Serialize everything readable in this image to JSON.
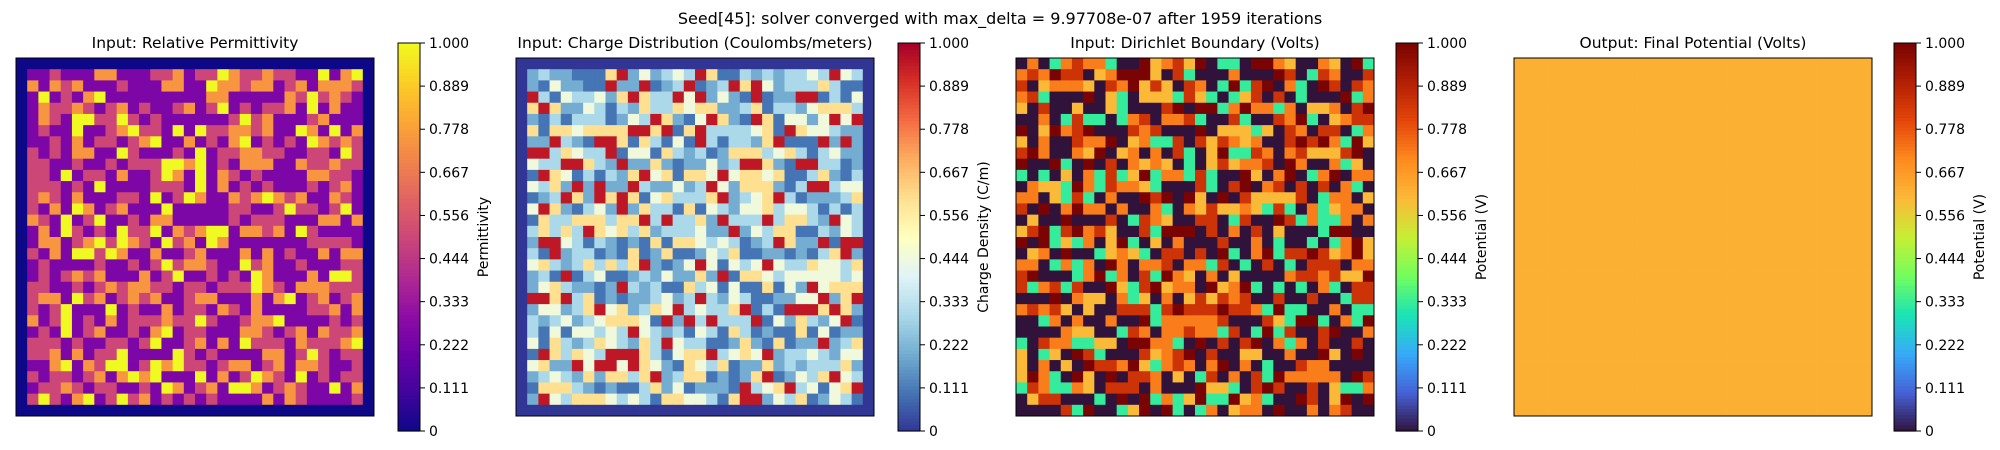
{
  "figure": {
    "suptitle": "Seed[45]: solver converged with max_delta = 9.97708e-07 after 1959 iterations"
  },
  "colorbar_ticks": [
    "0",
    "0.111",
    "0.222",
    "0.333",
    "0.444",
    "0.556",
    "0.667",
    "0.778",
    "0.889",
    "1.000"
  ],
  "chart_data": [
    {
      "type": "heatmap",
      "title": "Input: Relative Permittivity",
      "colorbar_label": "Permittivity",
      "colormap": "plasma",
      "vmin": 0,
      "vmax": 1,
      "grid_size": 32,
      "border_value": 0.0,
      "interior_values": [
        0.25,
        0.5,
        0.75,
        1.0
      ],
      "interior_weights": [
        0.4,
        0.28,
        0.22,
        0.1
      ],
      "seed": 45
    },
    {
      "type": "heatmap",
      "title": "Input: Charge Distribution (Coulombs/meters)",
      "colorbar_label": "Charge Density (C/m)",
      "colormap": "RdYlBu_r",
      "vmin": 0,
      "vmax": 1,
      "grid_size": 32,
      "border_value": 0.0,
      "interior_values": [
        0.1,
        0.2,
        0.3,
        0.45,
        0.6,
        0.95
      ],
      "interior_weights": [
        0.18,
        0.2,
        0.2,
        0.14,
        0.14,
        0.14
      ],
      "seed": 46
    },
    {
      "type": "heatmap",
      "title": "Input: Dirichlet Boundary (Volts)",
      "colorbar_label": "Potential (V)",
      "colormap": "turbo",
      "vmin": 0,
      "vmax": 1,
      "grid_size": 32,
      "border_value": null,
      "interior_values": [
        0.0,
        0.33,
        0.6,
        0.72,
        0.85,
        1.0
      ],
      "interior_weights": [
        0.3,
        0.12,
        0.12,
        0.18,
        0.16,
        0.12
      ],
      "seed": 47
    },
    {
      "type": "heatmap",
      "title": "Output: Final Potential (Volts)",
      "colorbar_label": "Potential (V)",
      "colormap": "turbo",
      "vmin": 0,
      "vmax": 1,
      "grid_size": 32,
      "uniform_value": 0.62
    }
  ]
}
